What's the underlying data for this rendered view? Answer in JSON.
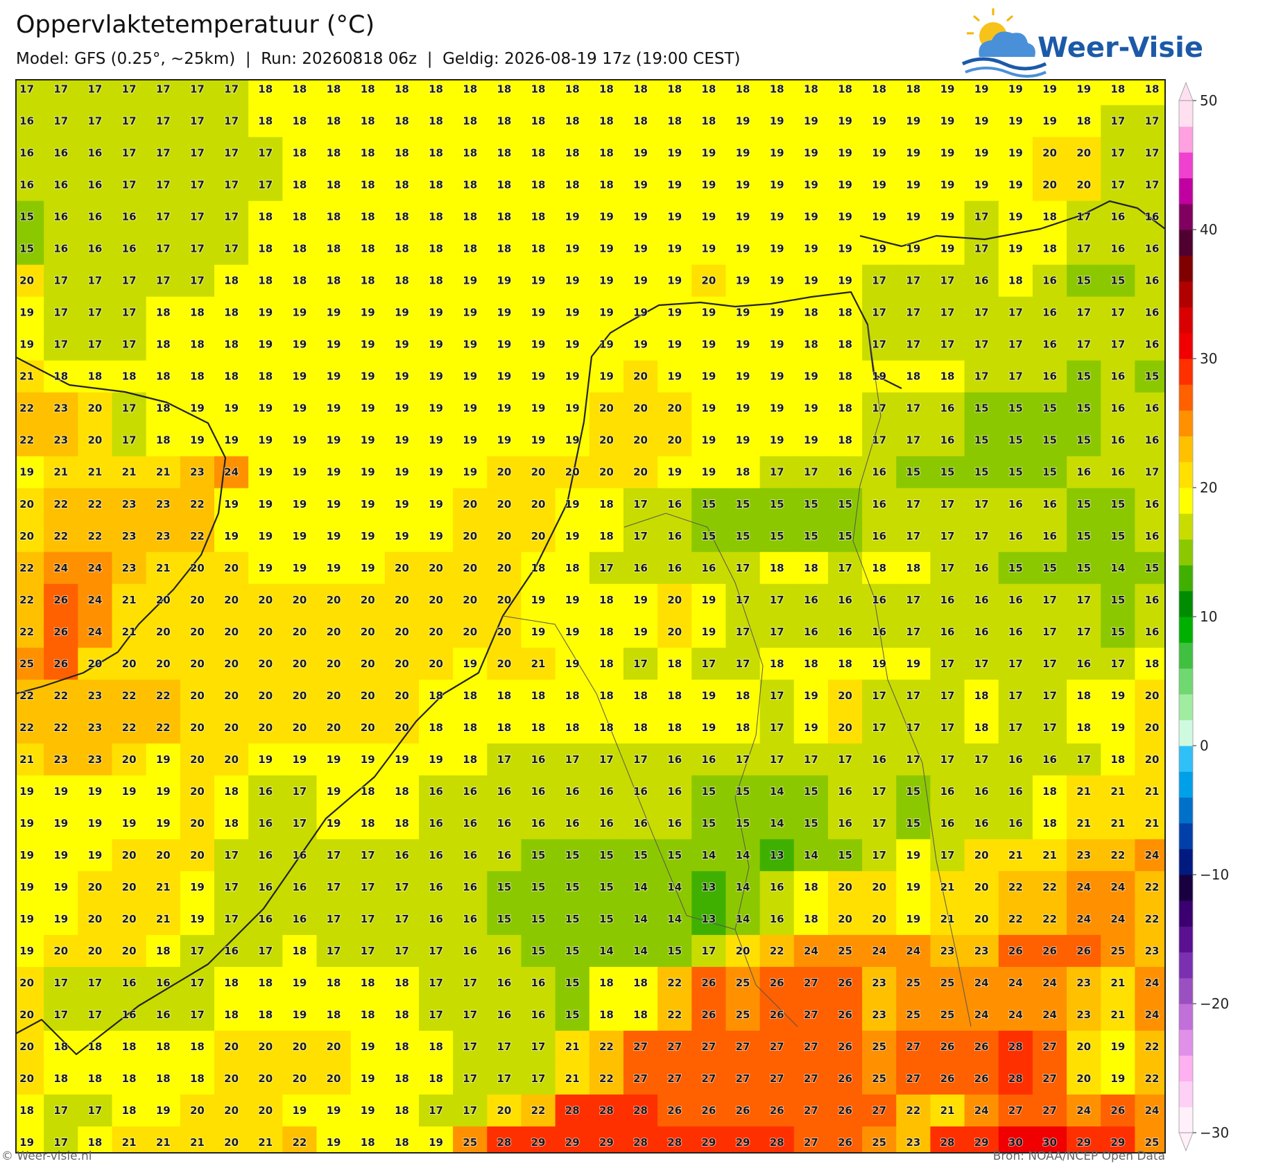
{
  "header": {
    "title": "Oppervlaktetemperatuur (°C)",
    "subtitle": "Model: GFS (0.25°, ~25km)  |  Run: 20260818 06z  |  Geldig: 2026-08-19 17z (19:00 CEST)"
  },
  "logo": {
    "text": "Weer-Visie"
  },
  "map": {
    "grid": [
      [
        17,
        17,
        17,
        17,
        17,
        17,
        17,
        18,
        18,
        18,
        18,
        18,
        18,
        18,
        18,
        18,
        18,
        18,
        18,
        18,
        18,
        18,
        18,
        18,
        18,
        18,
        18,
        19,
        19,
        19,
        19,
        19,
        18,
        18
      ],
      [
        16,
        17,
        17,
        17,
        17,
        17,
        17,
        18,
        18,
        18,
        18,
        18,
        18,
        18,
        18,
        18,
        18,
        18,
        18,
        18,
        18,
        19,
        19,
        19,
        19,
        19,
        19,
        19,
        19,
        19,
        19,
        18,
        17,
        17
      ],
      [
        16,
        16,
        16,
        17,
        17,
        17,
        17,
        17,
        18,
        18,
        18,
        18,
        18,
        18,
        18,
        18,
        18,
        18,
        19,
        19,
        19,
        19,
        19,
        19,
        19,
        19,
        19,
        19,
        19,
        19,
        20,
        20,
        17,
        17
      ],
      [
        16,
        16,
        16,
        17,
        17,
        17,
        17,
        17,
        18,
        18,
        18,
        18,
        18,
        18,
        18,
        18,
        18,
        18,
        19,
        19,
        19,
        19,
        19,
        19,
        19,
        19,
        19,
        19,
        19,
        19,
        20,
        20,
        17,
        17
      ],
      [
        15,
        16,
        16,
        16,
        17,
        17,
        17,
        18,
        18,
        18,
        18,
        18,
        18,
        18,
        18,
        18,
        19,
        19,
        19,
        19,
        19,
        19,
        19,
        19,
        19,
        19,
        19,
        19,
        17,
        19,
        18,
        17,
        16,
        16
      ],
      [
        15,
        16,
        16,
        16,
        17,
        17,
        17,
        18,
        18,
        18,
        18,
        18,
        18,
        18,
        18,
        18,
        19,
        19,
        19,
        19,
        19,
        19,
        19,
        19,
        19,
        19,
        19,
        19,
        17,
        19,
        18,
        17,
        16,
        16
      ],
      [
        20,
        17,
        17,
        17,
        17,
        17,
        18,
        18,
        18,
        18,
        18,
        18,
        18,
        19,
        19,
        19,
        19,
        19,
        19,
        19,
        20,
        19,
        19,
        19,
        19,
        17,
        17,
        17,
        16,
        18,
        16,
        15,
        15,
        16
      ],
      [
        19,
        17,
        17,
        17,
        18,
        18,
        18,
        19,
        19,
        19,
        19,
        19,
        19,
        19,
        19,
        19,
        19,
        19,
        19,
        19,
        19,
        19,
        19,
        18,
        18,
        17,
        17,
        17,
        17,
        17,
        16,
        17,
        17,
        16
      ],
      [
        19,
        17,
        17,
        17,
        18,
        18,
        18,
        19,
        19,
        19,
        19,
        19,
        19,
        19,
        19,
        19,
        19,
        19,
        19,
        19,
        19,
        19,
        19,
        18,
        18,
        17,
        17,
        17,
        17,
        17,
        16,
        17,
        17,
        16
      ],
      [
        21,
        18,
        18,
        18,
        18,
        18,
        18,
        18,
        19,
        19,
        19,
        19,
        19,
        19,
        19,
        19,
        19,
        19,
        20,
        19,
        19,
        19,
        19,
        19,
        18,
        19,
        18,
        18,
        17,
        17,
        16,
        15,
        16,
        15
      ],
      [
        22,
        23,
        20,
        17,
        18,
        19,
        19,
        19,
        19,
        19,
        19,
        19,
        19,
        19,
        19,
        19,
        19,
        20,
        20,
        20,
        19,
        19,
        19,
        19,
        18,
        17,
        17,
        16,
        15,
        15,
        15,
        15,
        16,
        16
      ],
      [
        22,
        23,
        20,
        17,
        18,
        19,
        19,
        19,
        19,
        19,
        19,
        19,
        19,
        19,
        19,
        19,
        19,
        20,
        20,
        20,
        19,
        19,
        19,
        19,
        18,
        17,
        17,
        16,
        15,
        15,
        15,
        15,
        16,
        16
      ],
      [
        19,
        21,
        21,
        21,
        21,
        23,
        24,
        19,
        19,
        19,
        19,
        19,
        19,
        19,
        20,
        20,
        20,
        20,
        20,
        19,
        19,
        18,
        17,
        17,
        16,
        16,
        15,
        15,
        15,
        15,
        15,
        16,
        16,
        17
      ],
      [
        20,
        22,
        22,
        23,
        23,
        22,
        19,
        19,
        19,
        19,
        19,
        19,
        19,
        20,
        20,
        20,
        19,
        18,
        17,
        16,
        15,
        15,
        15,
        15,
        15,
        16,
        17,
        17,
        17,
        16,
        16,
        15,
        15,
        16
      ],
      [
        20,
        22,
        22,
        23,
        23,
        22,
        19,
        19,
        19,
        19,
        19,
        19,
        19,
        20,
        20,
        20,
        19,
        18,
        17,
        16,
        15,
        15,
        15,
        15,
        15,
        16,
        17,
        17,
        17,
        16,
        16,
        15,
        15,
        16
      ],
      [
        22,
        24,
        24,
        23,
        21,
        20,
        20,
        19,
        19,
        19,
        19,
        20,
        20,
        20,
        20,
        18,
        18,
        17,
        16,
        16,
        16,
        17,
        18,
        18,
        17,
        18,
        18,
        17,
        16,
        15,
        15,
        15,
        14,
        15
      ],
      [
        22,
        26,
        24,
        21,
        20,
        20,
        20,
        20,
        20,
        20,
        20,
        20,
        20,
        20,
        20,
        19,
        19,
        18,
        19,
        20,
        19,
        17,
        17,
        16,
        16,
        16,
        17,
        16,
        16,
        16,
        17,
        17,
        15,
        16
      ],
      [
        22,
        26,
        24,
        21,
        20,
        20,
        20,
        20,
        20,
        20,
        20,
        20,
        20,
        20,
        20,
        19,
        19,
        18,
        19,
        20,
        19,
        17,
        17,
        16,
        16,
        16,
        17,
        16,
        16,
        16,
        17,
        17,
        15,
        16
      ],
      [
        25,
        26,
        20,
        20,
        20,
        20,
        20,
        20,
        20,
        20,
        20,
        20,
        20,
        19,
        20,
        21,
        19,
        18,
        17,
        18,
        17,
        17,
        18,
        18,
        18,
        19,
        19,
        17,
        17,
        17,
        17,
        16,
        17,
        18
      ],
      [
        22,
        22,
        23,
        22,
        22,
        20,
        20,
        20,
        20,
        20,
        20,
        20,
        18,
        18,
        18,
        18,
        18,
        18,
        18,
        18,
        19,
        18,
        17,
        19,
        20,
        17,
        17,
        17,
        18,
        17,
        17,
        18,
        19,
        20
      ],
      [
        22,
        22,
        23,
        22,
        22,
        20,
        20,
        20,
        20,
        20,
        20,
        20,
        18,
        18,
        18,
        18,
        18,
        18,
        18,
        18,
        19,
        18,
        17,
        19,
        20,
        17,
        17,
        17,
        18,
        17,
        17,
        18,
        19,
        20
      ],
      [
        21,
        23,
        23,
        20,
        19,
        20,
        20,
        19,
        19,
        19,
        19,
        19,
        19,
        18,
        17,
        16,
        17,
        17,
        17,
        16,
        16,
        17,
        17,
        17,
        17,
        16,
        17,
        17,
        17,
        16,
        16,
        17,
        18,
        20
      ],
      [
        19,
        19,
        19,
        19,
        19,
        20,
        18,
        16,
        17,
        19,
        18,
        18,
        16,
        16,
        16,
        16,
        16,
        16,
        16,
        16,
        15,
        15,
        14,
        15,
        16,
        17,
        15,
        16,
        16,
        16,
        18,
        21,
        21,
        21
      ],
      [
        19,
        19,
        19,
        19,
        19,
        20,
        18,
        16,
        17,
        19,
        18,
        18,
        16,
        16,
        16,
        16,
        16,
        16,
        16,
        16,
        15,
        15,
        14,
        15,
        16,
        17,
        15,
        16,
        16,
        16,
        18,
        21,
        21,
        21
      ],
      [
        19,
        19,
        19,
        20,
        20,
        20,
        17,
        16,
        16,
        17,
        17,
        16,
        16,
        16,
        16,
        15,
        15,
        15,
        15,
        15,
        14,
        14,
        13,
        14,
        15,
        17,
        19,
        17,
        20,
        21,
        21,
        23,
        22,
        24
      ],
      [
        19,
        19,
        20,
        20,
        21,
        19,
        17,
        16,
        16,
        17,
        17,
        17,
        16,
        16,
        15,
        15,
        15,
        15,
        14,
        14,
        13,
        14,
        16,
        18,
        20,
        20,
        19,
        21,
        20,
        22,
        22,
        24,
        24,
        22
      ],
      [
        19,
        19,
        20,
        20,
        21,
        19,
        17,
        16,
        16,
        17,
        17,
        17,
        16,
        16,
        15,
        15,
        15,
        15,
        14,
        14,
        13,
        14,
        16,
        18,
        20,
        20,
        19,
        21,
        20,
        22,
        22,
        24,
        24,
        22
      ],
      [
        19,
        20,
        20,
        20,
        18,
        17,
        16,
        17,
        18,
        17,
        17,
        17,
        17,
        16,
        16,
        15,
        15,
        14,
        14,
        15,
        17,
        20,
        22,
        24,
        25,
        24,
        24,
        23,
        23,
        26,
        26,
        26,
        25,
        23
      ],
      [
        20,
        17,
        17,
        16,
        16,
        17,
        18,
        18,
        19,
        18,
        18,
        18,
        17,
        17,
        16,
        16,
        15,
        18,
        18,
        22,
        26,
        25,
        26,
        27,
        26,
        23,
        25,
        25,
        24,
        24,
        24,
        23,
        21,
        24
      ],
      [
        20,
        17,
        17,
        16,
        16,
        17,
        18,
        18,
        19,
        18,
        18,
        18,
        17,
        17,
        16,
        16,
        15,
        18,
        18,
        22,
        26,
        25,
        26,
        27,
        26,
        23,
        25,
        25,
        24,
        24,
        24,
        23,
        21,
        24
      ],
      [
        20,
        18,
        18,
        18,
        18,
        18,
        20,
        20,
        20,
        20,
        19,
        18,
        18,
        17,
        17,
        17,
        21,
        22,
        27,
        27,
        27,
        27,
        27,
        27,
        26,
        25,
        27,
        26,
        26,
        28,
        27,
        20,
        19,
        22
      ],
      [
        20,
        18,
        18,
        18,
        18,
        18,
        20,
        20,
        20,
        20,
        19,
        18,
        18,
        17,
        17,
        17,
        21,
        22,
        27,
        27,
        27,
        27,
        27,
        27,
        26,
        25,
        27,
        26,
        26,
        28,
        27,
        20,
        19,
        22
      ],
      [
        18,
        17,
        17,
        18,
        19,
        20,
        20,
        20,
        19,
        19,
        19,
        18,
        17,
        17,
        20,
        22,
        28,
        28,
        28,
        26,
        26,
        26,
        26,
        27,
        26,
        27,
        22,
        21,
        24,
        27,
        27,
        24,
        26,
        24
      ],
      [
        19,
        17,
        18,
        21,
        21,
        21,
        20,
        21,
        22,
        19,
        18,
        18,
        19,
        25,
        28,
        29,
        29,
        29,
        28,
        28,
        29,
        29,
        28,
        27,
        26,
        25,
        23,
        28,
        29,
        30,
        30,
        29,
        29,
        25
      ]
    ]
  },
  "colorbar": {
    "range": [
      -30,
      50
    ],
    "ticks": [
      {
        "value": -30,
        "label": "−30"
      },
      {
        "value": -20,
        "label": "−20"
      },
      {
        "value": -10,
        "label": "−10"
      },
      0,
      10,
      20,
      30,
      40,
      50
    ],
    "colors": [
      "#fff0fa",
      "#ffd0f6",
      "#ffb0f0",
      "#e090e8",
      "#c070d8",
      "#9a50c0",
      "#7a30b0",
      "#5a1090",
      "#3a0070",
      "#180040",
      "#001a80",
      "#0040a8",
      "#0070c8",
      "#00a0e8",
      "#30c0f8",
      "#d0fae0",
      "#a0eca0",
      "#70d870",
      "#40c040",
      "#00b000",
      "#008c00",
      "#40b000",
      "#8cc800",
      "#c8dc00",
      "#ffff00",
      "#ffe000",
      "#ffc000",
      "#ff9000",
      "#ff6000",
      "#ff3000",
      "#f00000",
      "#d80000",
      "#b00000",
      "#800000",
      "#500030",
      "#800060",
      "#c000a0",
      "#f040d0",
      "#ffa0e0",
      "#ffe0f0"
    ]
  },
  "footer": {
    "left": "© Weer-visie.nl",
    "right": "Bron: NOAA/NCEP Open Data"
  }
}
